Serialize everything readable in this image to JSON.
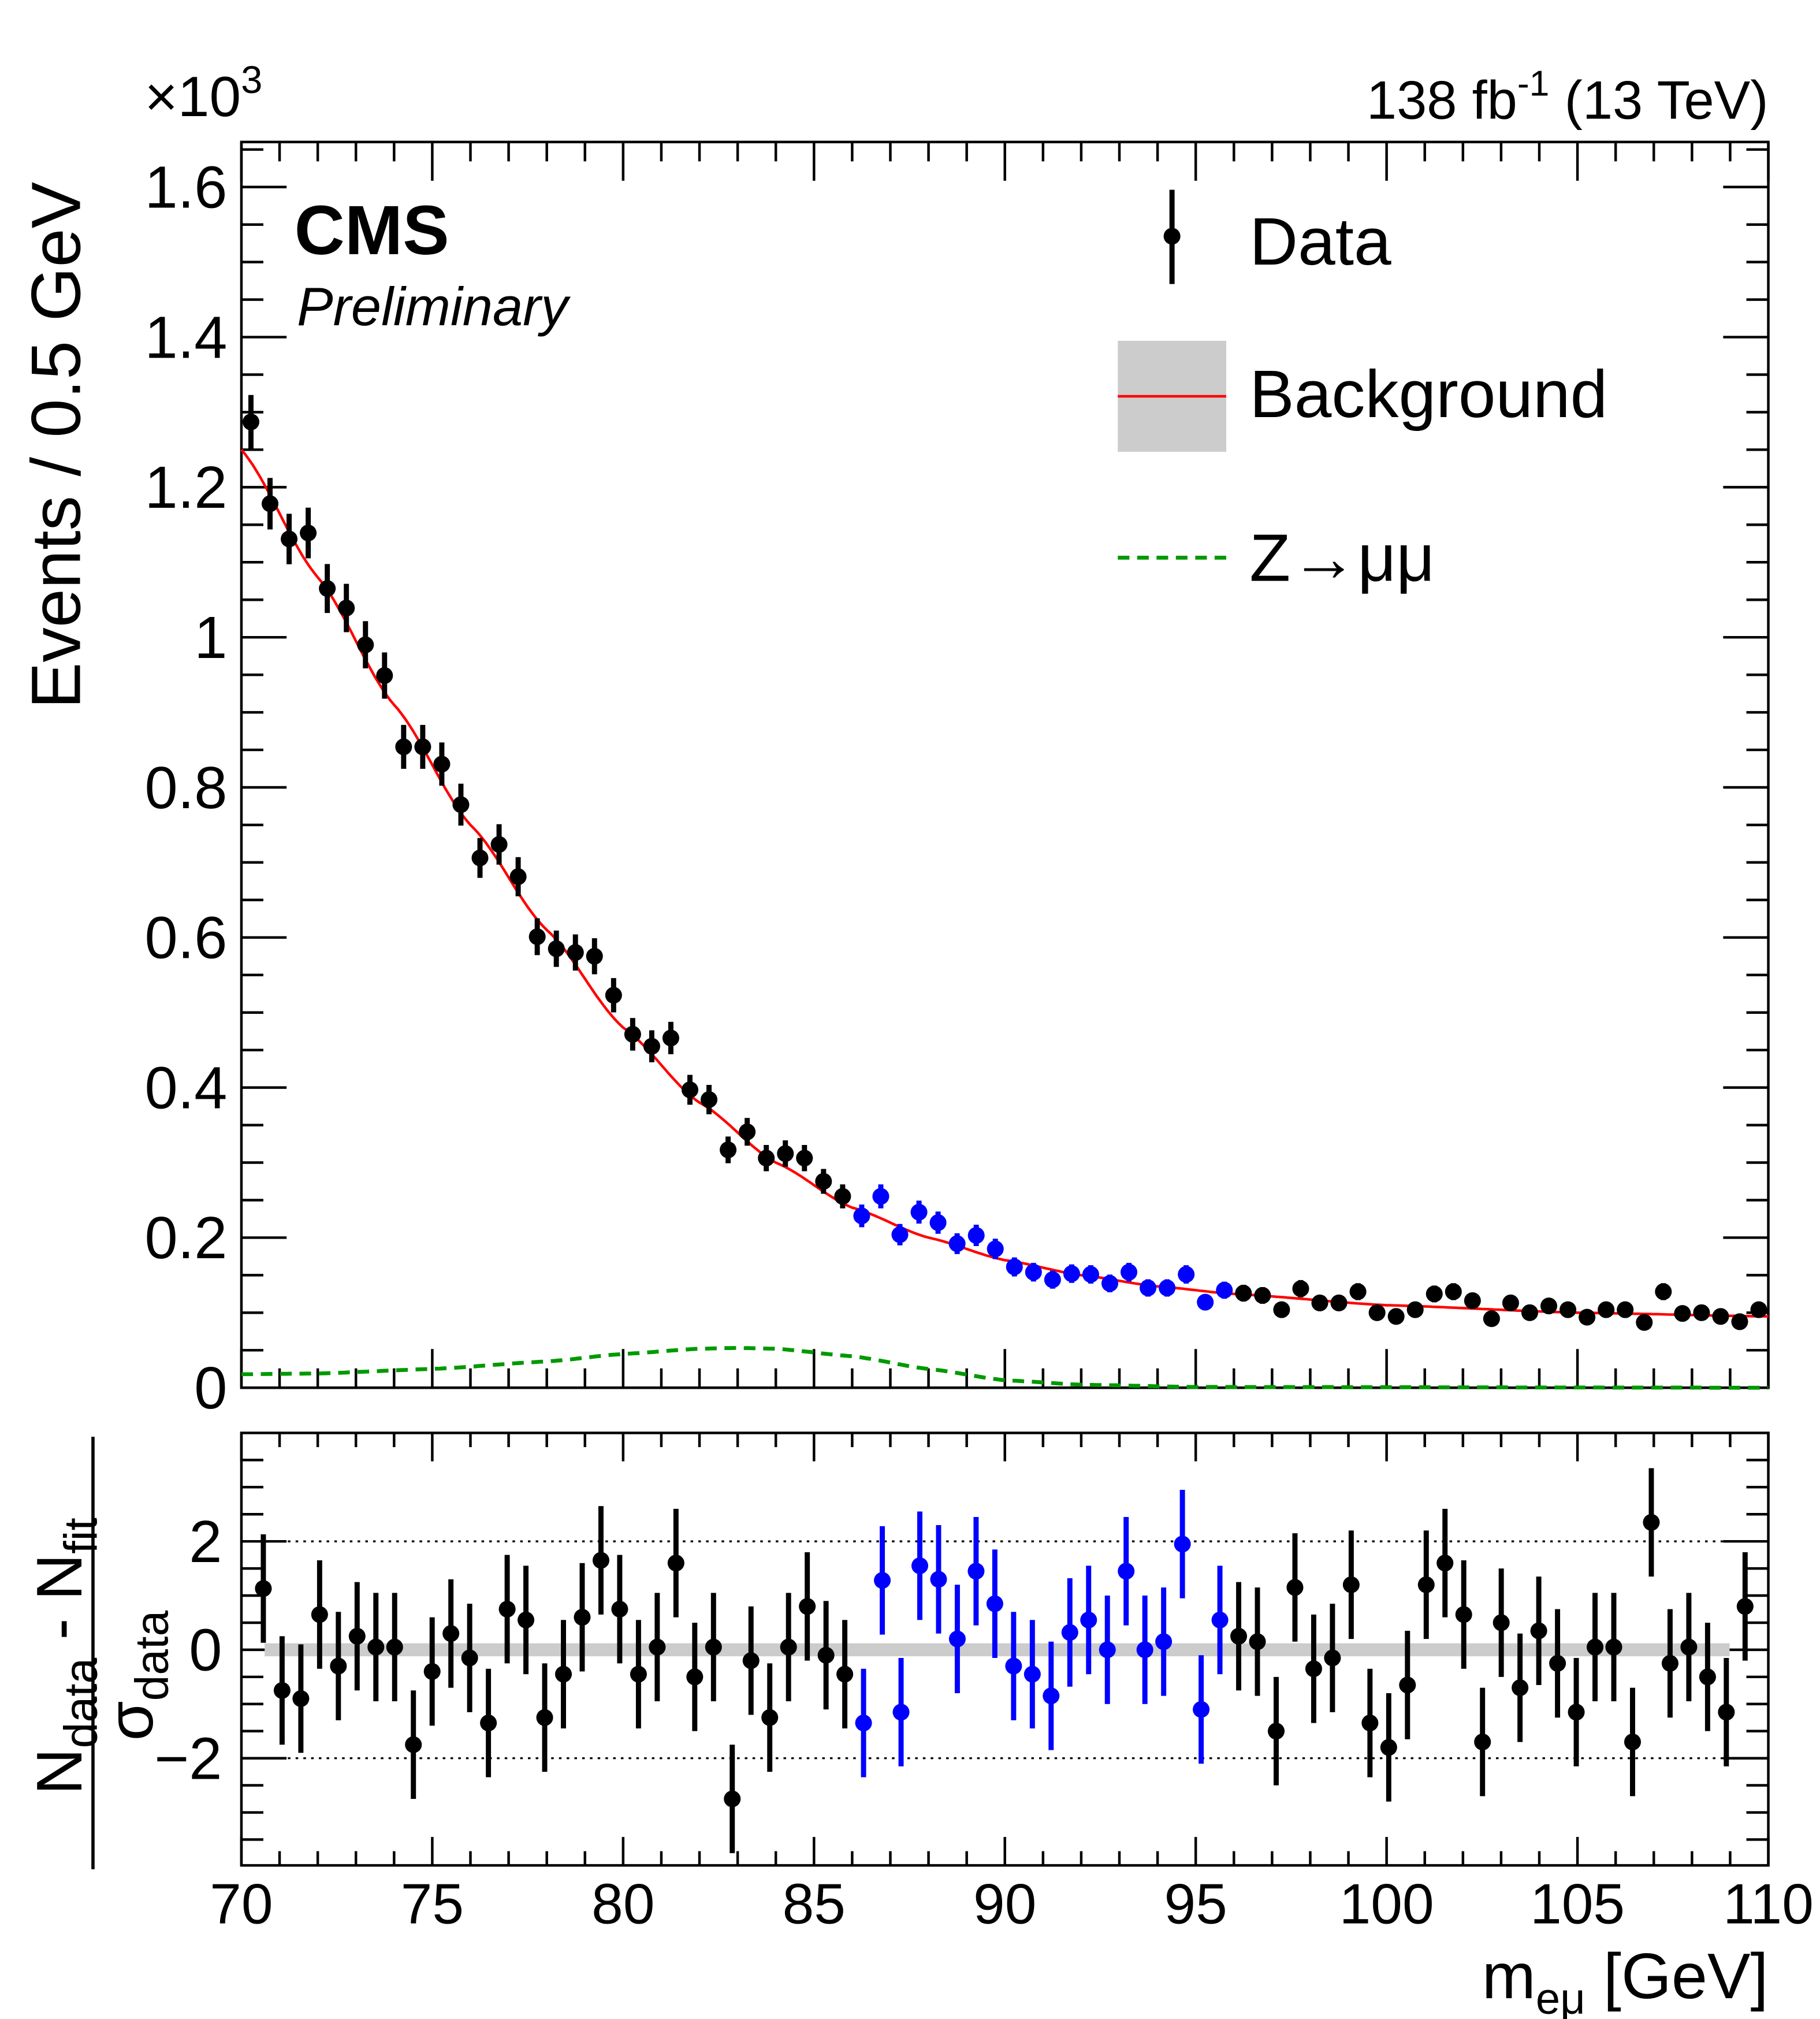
{
  "chart_data": [
    {
      "type": "scatter",
      "panel": "main",
      "ylabel": "Events / 0.5 GeV",
      "y_multiplier": "×10",
      "y_multiplier_exp": "3",
      "lumi_label": "138 fb",
      "lumi_exp": "-1",
      "lumi_suffix": " (13 TeV)",
      "experiment": "CMS",
      "status": "Preliminary",
      "xlim": [
        70,
        110
      ],
      "ylim": [
        0,
        1.66
      ],
      "x_ticks": [
        70,
        75,
        80,
        85,
        90,
        95,
        100,
        105,
        110
      ],
      "y_ticks": [
        0,
        0.2,
        0.4,
        0.6,
        0.8,
        1,
        1.2,
        1.4,
        1.6
      ],
      "y_tick_labels": [
        "0",
        "0.2",
        "0.4",
        "0.6",
        "0.8",
        "1",
        "1.2",
        "1.4",
        "1.6"
      ],
      "grid": false,
      "legend_position": "top-right",
      "legend": {
        "data": "Data",
        "background": "Background",
        "signal": "Z→μμ"
      },
      "colors": {
        "data": "#000000",
        "data_blinded_region": "#0000ff",
        "background_fit": "#ff0000",
        "background_band": "#cccccc",
        "signal": "#009900"
      },
      "x": [
        70.25,
        70.75,
        71.25,
        71.75,
        72.25,
        72.75,
        73.25,
        73.75,
        74.25,
        74.75,
        75.25,
        75.75,
        76.25,
        76.75,
        77.25,
        77.75,
        78.25,
        78.75,
        79.25,
        79.75,
        80.25,
        80.75,
        81.25,
        81.75,
        82.25,
        82.75,
        83.25,
        83.75,
        84.25,
        84.75,
        85.25,
        85.75,
        86.25,
        86.75,
        87.25,
        87.75,
        88.25,
        88.75,
        89.25,
        89.75,
        90.25,
        90.75,
        91.25,
        91.75,
        92.25,
        92.75,
        93.25,
        93.75,
        94.25,
        94.75,
        95.25,
        95.75,
        96.25,
        96.75,
        97.25,
        97.75,
        98.25,
        98.75,
        99.25,
        99.75,
        100.25,
        100.75,
        101.25,
        101.75,
        102.25,
        102.75,
        103.25,
        103.75,
        104.25,
        104.75,
        105.25,
        105.75,
        106.25,
        106.75,
        107.25,
        107.75,
        108.25,
        108.75,
        109.25,
        109.75
      ],
      "data_values": [
        1.287,
        1.178,
        1.131,
        1.139,
        1.065,
        1.039,
        0.99,
        0.949,
        0.854,
        0.854,
        0.831,
        0.777,
        0.706,
        0.724,
        0.681,
        0.601,
        0.585,
        0.58,
        0.575,
        0.523,
        0.471,
        0.455,
        0.466,
        0.397,
        0.384,
        0.317,
        0.341,
        0.306,
        0.312,
        0.306,
        0.275,
        0.255,
        0.229,
        0.255,
        0.204,
        0.234,
        0.22,
        0.192,
        0.203,
        0.185,
        0.161,
        0.154,
        0.144,
        0.152,
        0.151,
        0.139,
        0.154,
        0.133,
        0.133,
        0.151,
        0.114,
        0.13,
        0.126,
        0.123,
        0.104,
        0.132,
        0.113,
        0.113,
        0.128,
        0.1,
        0.095,
        0.104,
        0.125,
        0.128,
        0.116,
        0.092,
        0.113,
        0.1,
        0.109,
        0.104,
        0.094,
        0.104,
        0.104,
        0.087,
        0.128,
        0.099,
        0.1,
        0.095,
        0.088,
        0.104
      ],
      "blinded_range": [
        86,
        96
      ],
      "background_curve": {
        "x": [
          70,
          72,
          74,
          76,
          78,
          80,
          82,
          84,
          86,
          88,
          90,
          92,
          94,
          96,
          100,
          105,
          110
        ],
        "y": [
          1.25,
          1.08,
          0.91,
          0.75,
          0.61,
          0.48,
          0.38,
          0.3,
          0.24,
          0.2,
          0.17,
          0.15,
          0.135,
          0.125,
          0.11,
          0.1,
          0.095
        ]
      },
      "signal_curve": {
        "x": [
          70,
          72,
          75,
          78,
          80,
          82,
          83,
          84,
          86,
          88,
          90,
          92,
          95,
          110
        ],
        "y": [
          0.018,
          0.019,
          0.025,
          0.035,
          0.045,
          0.052,
          0.053,
          0.052,
          0.042,
          0.025,
          0.01,
          0.004,
          0.001,
          0.0
        ]
      }
    },
    {
      "type": "scatter",
      "panel": "pull",
      "ylabel_num": "N",
      "ylabel_num_sub1": "data",
      "ylabel_minus": " - N",
      "ylabel_num_sub2": "fit",
      "ylabel_den": "σ",
      "ylabel_den_sub": "data",
      "xlabel": "m",
      "xlabel_sub": "eμ",
      "xlabel_unit": " [GeV]",
      "ylim": [
        -3.9,
        3.9
      ],
      "y_ticks": [
        -2,
        0,
        2
      ],
      "y_tick_labels": [
        "−2",
        "0",
        "2"
      ],
      "x_tick_labels": [
        "70",
        "75",
        "80",
        "85",
        "90",
        "95",
        "100",
        "105",
        "110"
      ],
      "reference_lines": [
        -2,
        2
      ],
      "pull_values": [
        1.13,
        -0.75,
        -0.9,
        0.65,
        -0.3,
        0.25,
        0.05,
        0.05,
        -1.75,
        -0.4,
        0.3,
        -0.15,
        -1.35,
        0.75,
        0.55,
        -1.25,
        -0.45,
        0.6,
        1.65,
        0.75,
        -0.45,
        0.05,
        1.6,
        -0.5,
        0.05,
        -2.75,
        -0.2,
        -1.25,
        0.05,
        0.8,
        -0.1,
        -0.45,
        -1.35,
        1.28,
        -1.15,
        1.55,
        1.3,
        0.2,
        1.45,
        0.85,
        -0.3,
        -0.45,
        -0.85,
        0.32,
        0.55,
        0.0,
        1.45,
        0.0,
        0.15,
        1.95,
        -1.1,
        0.55,
        0.25,
        0.15,
        -1.5,
        1.15,
        -0.35,
        -0.15,
        1.2,
        -1.35,
        -1.8,
        -0.65,
        1.2,
        1.6,
        0.65,
        -1.7,
        0.5,
        -0.7,
        0.35,
        -0.25,
        -1.15,
        0.05,
        0.05,
        -1.7,
        2.35,
        -0.25,
        0.05,
        -0.5,
        -1.15,
        0.8
      ],
      "pull_errors": 1
    }
  ]
}
